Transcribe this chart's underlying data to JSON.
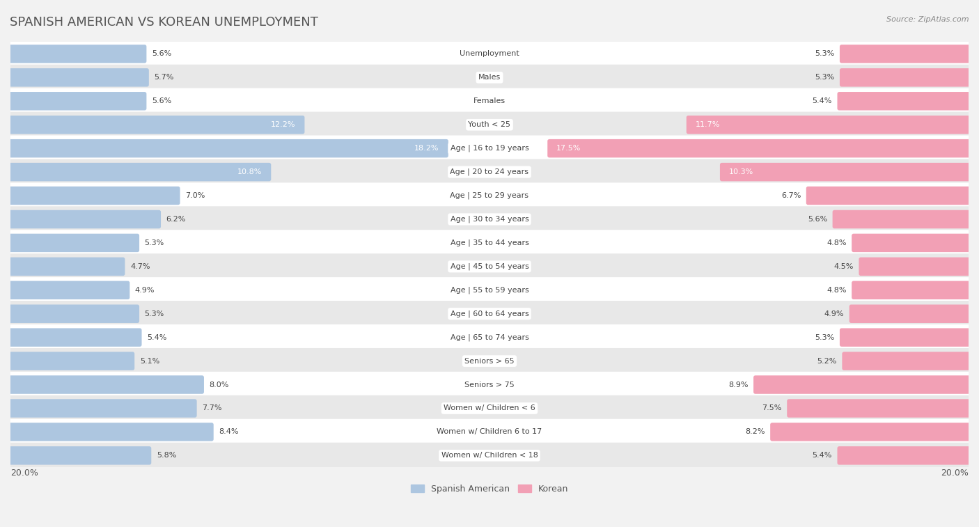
{
  "title": "SPANISH AMERICAN VS KOREAN UNEMPLOYMENT",
  "source": "Source: ZipAtlas.com",
  "categories": [
    "Unemployment",
    "Males",
    "Females",
    "Youth < 25",
    "Age | 16 to 19 years",
    "Age | 20 to 24 years",
    "Age | 25 to 29 years",
    "Age | 30 to 34 years",
    "Age | 35 to 44 years",
    "Age | 45 to 54 years",
    "Age | 55 to 59 years",
    "Age | 60 to 64 years",
    "Age | 65 to 74 years",
    "Seniors > 65",
    "Seniors > 75",
    "Women w/ Children < 6",
    "Women w/ Children 6 to 17",
    "Women w/ Children < 18"
  ],
  "spanish_american": [
    5.6,
    5.7,
    5.6,
    12.2,
    18.2,
    10.8,
    7.0,
    6.2,
    5.3,
    4.7,
    4.9,
    5.3,
    5.4,
    5.1,
    8.0,
    7.7,
    8.4,
    5.8
  ],
  "korean": [
    5.3,
    5.3,
    5.4,
    11.7,
    17.5,
    10.3,
    6.7,
    5.6,
    4.8,
    4.5,
    4.8,
    4.9,
    5.3,
    5.2,
    8.9,
    7.5,
    8.2,
    5.4
  ],
  "spanish_color": "#adc6e0",
  "korean_color": "#f2a0b5",
  "axis_max": 20.0,
  "background_color": "#f2f2f2",
  "row_color_odd": "#ffffff",
  "row_color_even": "#e8e8e8",
  "legend_spanish": "Spanish American",
  "legend_korean": "Korean",
  "title_fontsize": 13,
  "label_fontsize": 8,
  "value_fontsize": 8,
  "source_fontsize": 8,
  "legend_fontsize": 9
}
